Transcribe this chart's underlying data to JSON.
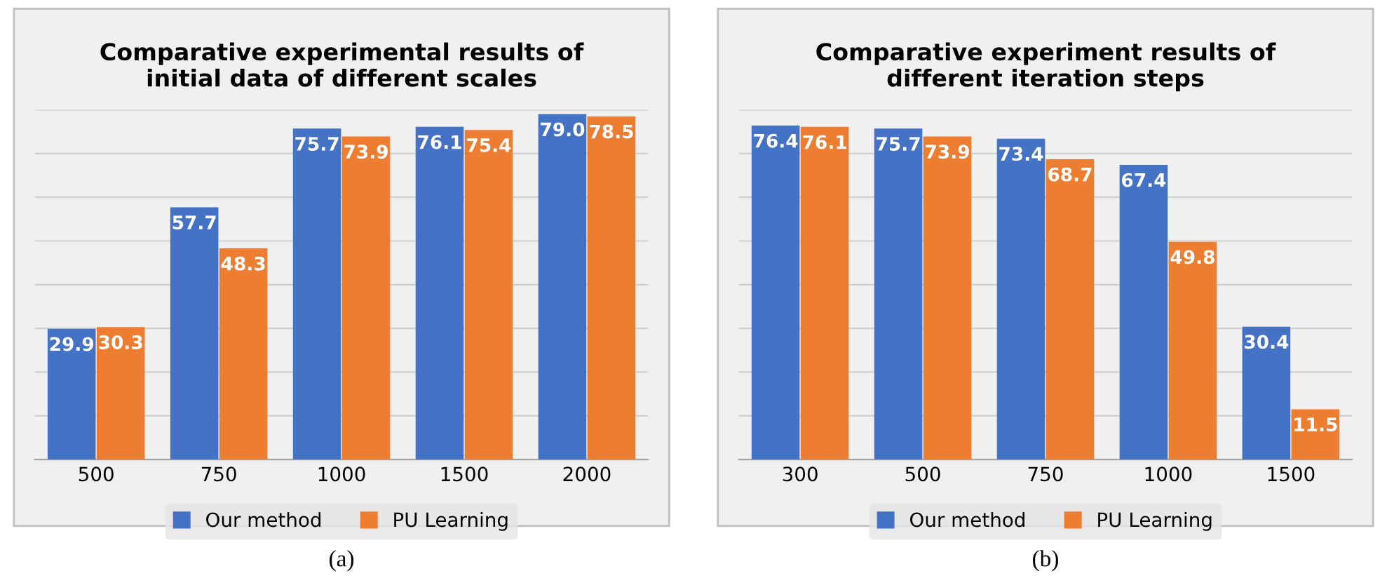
{
  "chart_data": [
    {
      "type": "bar",
      "title": "Comparative experimental results of\ninitial data of different scales",
      "categories": [
        "500",
        "750",
        "1000",
        "1500",
        "2000"
      ],
      "series": [
        {
          "name": "Our method",
          "color": "#4472c4",
          "values": [
            29.9,
            57.7,
            75.7,
            76.1,
            79.0
          ],
          "value_labels": [
            "29.9",
            "57.7",
            "75.7",
            "76.1",
            "79.0"
          ]
        },
        {
          "name": "PU Learning",
          "color": "#ed7d31",
          "values": [
            30.3,
            48.3,
            73.9,
            75.4,
            78.5
          ],
          "value_labels": [
            "30.3",
            "48.3",
            "73.9",
            "75.4",
            "78.5"
          ]
        }
      ],
      "ylim": [
        0,
        80
      ],
      "yticks": [
        {
          "value": 0,
          "label": null
        },
        {
          "value": 10,
          "label": null
        },
        {
          "value": 20,
          "label": null
        },
        {
          "value": 30,
          "label": null
        },
        {
          "value": 40,
          "label": null
        },
        {
          "value": 50,
          "label": null
        },
        {
          "value": 60,
          "label": null
        },
        {
          "value": 70,
          "label": null
        },
        {
          "value": 80,
          "label": null
        }
      ],
      "tick_labels": "x",
      "grid": "y",
      "legend": "bottom",
      "annotations": [
        "(a)"
      ]
    },
    {
      "type": "bar",
      "title": "Comparative experiment results of\ndifferent iteration steps",
      "categories": [
        "300",
        "500",
        "750",
        "1000",
        "1500"
      ],
      "series": [
        {
          "name": "Our method",
          "color": "#4472c4",
          "values": [
            76.4,
            75.7,
            73.4,
            67.4,
            30.4
          ],
          "value_labels": [
            "76.4",
            "75.7",
            "73.4",
            "67.4",
            "30.4"
          ]
        },
        {
          "name": "PU Learning",
          "color": "#ed7d31",
          "values": [
            76.1,
            73.9,
            68.7,
            49.8,
            11.5
          ],
          "value_labels": [
            "76.1",
            "73.9",
            "68.7",
            "49.8",
            "11.5"
          ]
        }
      ],
      "ylim": [
        0,
        80
      ],
      "yticks": [
        {
          "value": 0,
          "label": null
        },
        {
          "value": 10,
          "label": null
        },
        {
          "value": 20,
          "label": null
        },
        {
          "value": 30,
          "label": null
        },
        {
          "value": 40,
          "label": null
        },
        {
          "value": 50,
          "label": null
        },
        {
          "value": 60,
          "label": null
        },
        {
          "value": 70,
          "label": null
        },
        {
          "value": 80,
          "label": null
        }
      ],
      "tick_labels": "x",
      "grid": "y",
      "legend": "bottom",
      "annotations": [
        "(b)"
      ]
    }
  ]
}
